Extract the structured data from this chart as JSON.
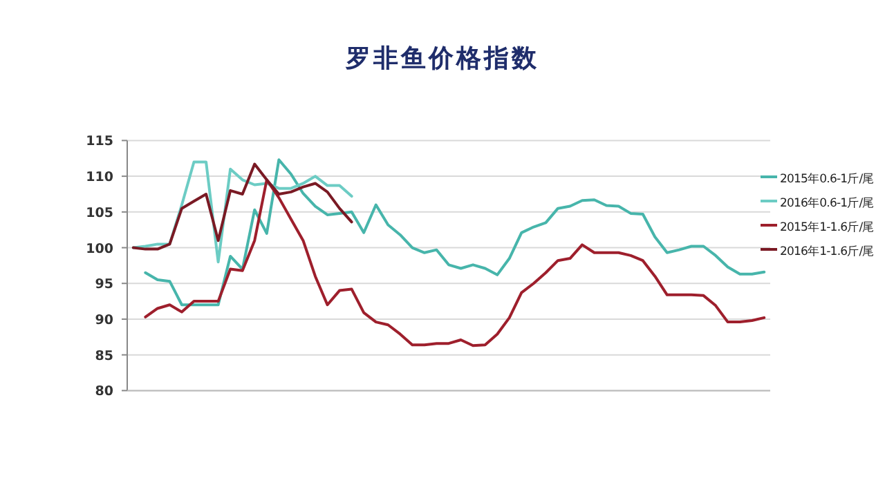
{
  "chart_data": {
    "type": "line",
    "title": "罗非鱼价格指数",
    "categories": [
      null,
      null,
      null,
      null,
      null,
      null,
      null,
      null,
      null,
      null,
      null,
      null,
      null,
      null,
      null,
      null,
      null,
      null,
      null,
      null,
      null,
      null,
      null,
      null,
      null,
      null,
      null,
      null,
      null,
      null,
      null,
      null,
      null,
      null,
      null,
      null,
      null,
      null,
      null,
      null,
      null,
      null,
      null,
      null,
      null,
      null,
      null,
      null,
      null,
      null,
      null,
      null,
      null
    ],
    "series": [
      {
        "name": "2015年0.6-1斤/尾",
        "color": "#47b5ab",
        "values": [
          null,
          96.5,
          95.5,
          95.3,
          92,
          92,
          92,
          92,
          98.8,
          97,
          105.3,
          102,
          112.3,
          110.3,
          107.6,
          105.8,
          104.6,
          104.8,
          105,
          102.1,
          106,
          103.2,
          101.8,
          100,
          99.3,
          99.7,
          97.6,
          97.1,
          97.6,
          97.1,
          96.2,
          98.5,
          102.1,
          102.9,
          103.5,
          105.5,
          105.8,
          106.6,
          106.7,
          105.9,
          105.8,
          104.8,
          104.7,
          101.5,
          99.3,
          99.7,
          100.2,
          100.2,
          98.9,
          97.3,
          96.3,
          96.3,
          96.6
        ]
      },
      {
        "name": "2016年0.6-1斤/尾",
        "color": "#6cccc4",
        "values": [
          100,
          100.2,
          100.5,
          100.5,
          106,
          112,
          112,
          98,
          111,
          109.5,
          108.8,
          109,
          108.3,
          108.3,
          109,
          110,
          108.7,
          108.7,
          107.2,
          null,
          null,
          null,
          null,
          null,
          null,
          null,
          null,
          null,
          null,
          null,
          null,
          null,
          null,
          null,
          null,
          null,
          null,
          null,
          null,
          null,
          null,
          null,
          null,
          null,
          null,
          null,
          null,
          null,
          null,
          null,
          null,
          null,
          null
        ]
      },
      {
        "name": "2015年1-1.6斤/尾",
        "color": "#9e1f2c",
        "values": [
          null,
          90.3,
          91.5,
          92,
          91,
          92.5,
          92.5,
          92.5,
          97,
          96.8,
          101,
          109.5,
          107,
          104,
          101,
          96,
          92,
          94,
          94.2,
          90.9,
          89.6,
          89.2,
          87.9,
          86.4,
          86.4,
          86.6,
          86.6,
          87.1,
          86.3,
          86.4,
          87.9,
          90.2,
          93.7,
          95,
          96.5,
          98.2,
          98.5,
          100.4,
          99.3,
          99.3,
          99.3,
          98.9,
          98.2,
          96,
          93.4,
          93.4,
          93.4,
          93.3,
          91.9,
          89.6,
          89.6,
          89.8,
          90.2
        ]
      },
      {
        "name": "2016年1-1.6斤/尾",
        "color": "#7a1a24",
        "values": [
          100,
          99.8,
          99.8,
          100.5,
          105.5,
          106.5,
          107.5,
          101,
          108,
          107.5,
          111.7,
          109.5,
          107.5,
          107.8,
          108.5,
          109,
          107.8,
          105.5,
          103.6,
          null,
          null,
          null,
          null,
          null,
          null,
          null,
          null,
          null,
          null,
          null,
          null,
          null,
          null,
          null,
          null,
          null,
          null,
          null,
          null,
          null,
          null,
          null,
          null,
          null,
          null,
          null,
          null,
          null,
          null,
          null,
          null,
          null,
          null
        ]
      }
    ],
    "ylim": [
      80,
      115
    ],
    "yticks": [
      80,
      85,
      90,
      95,
      100,
      105,
      110,
      115
    ],
    "grid": "y",
    "legend": "right",
    "marker": "none",
    "line_style": "solid"
  }
}
